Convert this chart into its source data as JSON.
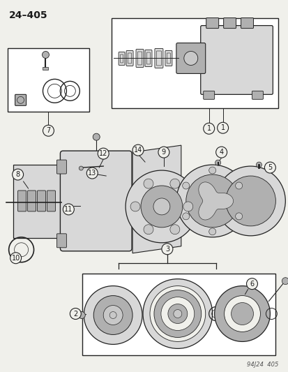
{
  "title": "24–405",
  "page_color": "#f0f0eb",
  "border_color": "#2a2a2a",
  "text_color": "#1a1a1a",
  "footnote": "94J24  405",
  "gray1": "#c8c8c8",
  "gray2": "#b0b0b0",
  "gray3": "#d8d8d8",
  "white": "#ffffff",
  "line_color": "#222222"
}
